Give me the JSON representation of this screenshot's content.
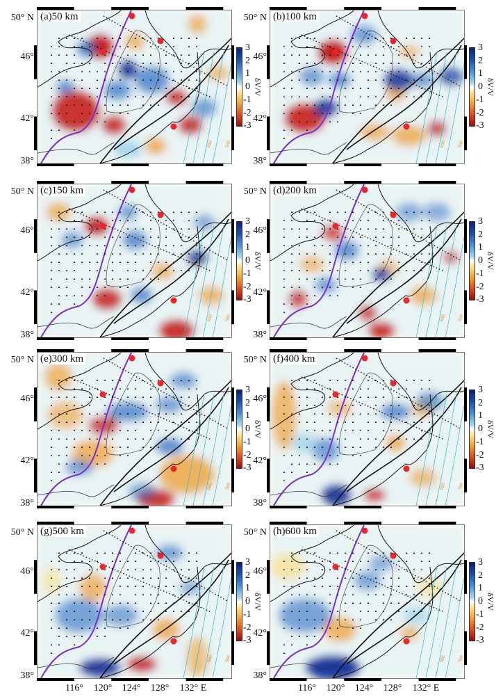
{
  "figure": {
    "panels": [
      {
        "id": "a",
        "label": "(a)50 km",
        "depth_km": 50
      },
      {
        "id": "b",
        "label": "(b)100 km",
        "depth_km": 100
      },
      {
        "id": "c",
        "label": "(c)150 km",
        "depth_km": 150
      },
      {
        "id": "d",
        "label": "(d)200 km",
        "depth_km": 200
      },
      {
        "id": "e",
        "label": "(e)300 km",
        "depth_km": 300
      },
      {
        "id": "f",
        "label": "(f)400 km",
        "depth_km": 400
      },
      {
        "id": "g",
        "label": "(g)500 km",
        "depth_km": 500
      },
      {
        "id": "h",
        "label": "(h)600 km",
        "depth_km": 600
      }
    ],
    "lat_ticks": [
      "50° N",
      "46°",
      "42°",
      "38°"
    ],
    "lon_ticks": [
      "116°",
      "120°",
      "124°",
      "128°",
      "132° E"
    ],
    "colorbar": {
      "label": "δV/V",
      "ticks": [
        "3",
        "2",
        "1",
        "0",
        "-1",
        "-2",
        "-3"
      ],
      "range": [
        -3,
        3
      ],
      "colors": {
        "high": "#0a1e7a",
        "mid": "#ffffff",
        "low": "#9a0b0b"
      }
    },
    "contour_labels": [
      "600",
      "500"
    ],
    "colors": {
      "purple_line": "#7b2fc9",
      "red_marker": "#e8262e",
      "contour": "#35b5c8",
      "contour_label": "#d9922f"
    }
  }
}
